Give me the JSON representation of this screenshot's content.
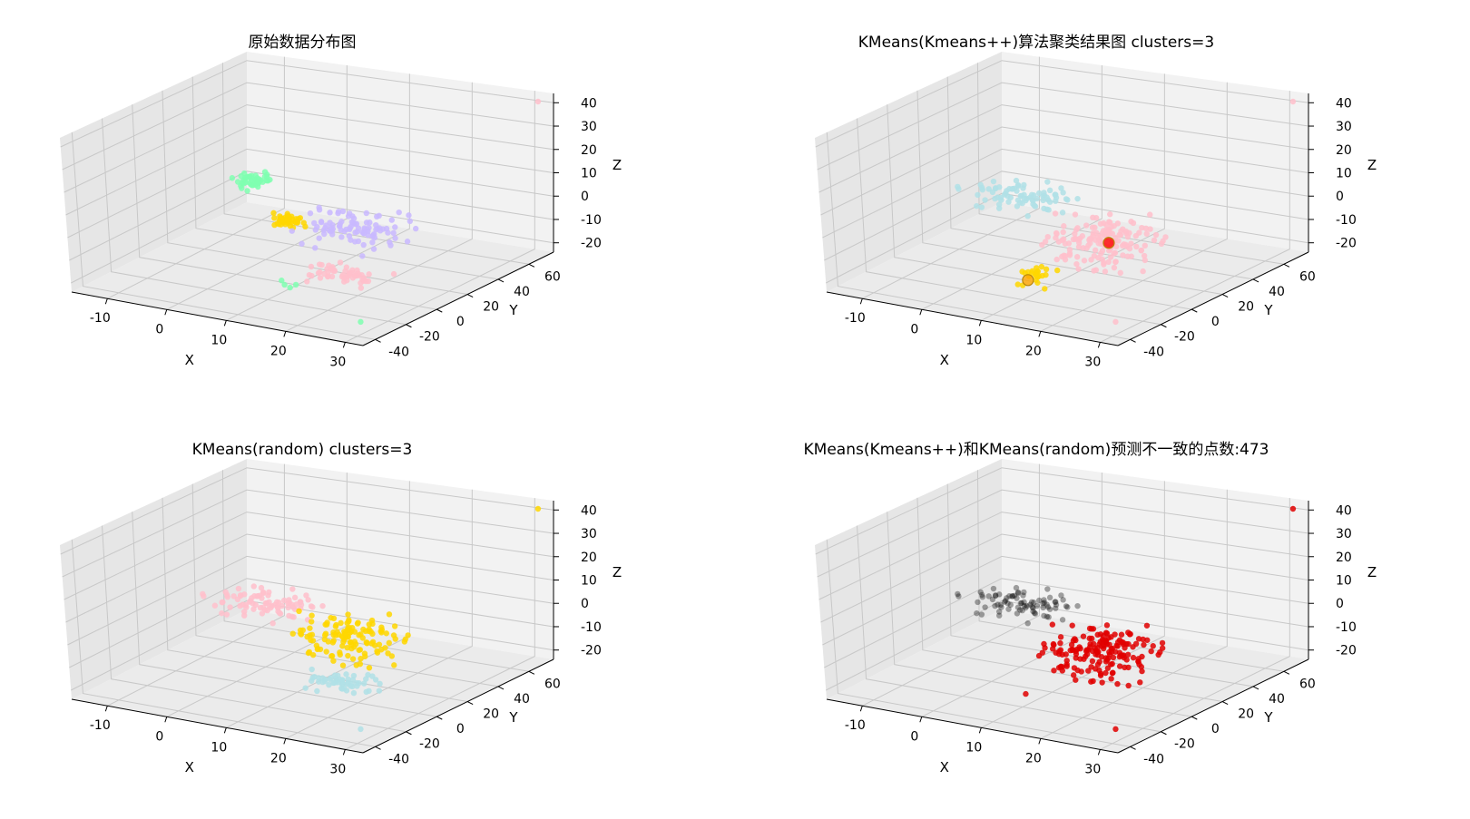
{
  "figure": {
    "background": "#ffffff",
    "pane_colors": {
      "back": "#f2f2f2",
      "side": "#e6e6e6",
      "floor": "#ebebeb"
    },
    "grid": true
  },
  "chart_data": [
    {
      "type": "scatter3d",
      "title": "原始数据分布图",
      "xlabel": "X",
      "ylabel": "Y",
      "zlabel": "Z",
      "xlim": [
        -16,
        33
      ],
      "ylim": [
        -48,
        76
      ],
      "zlim": [
        -24,
        44
      ],
      "xticks": [
        "-10",
        "0",
        "10",
        "20",
        "30"
      ],
      "yticks": [
        "-40",
        "-20",
        "0",
        "20",
        "40",
        "60"
      ],
      "zticks": [
        "-20",
        "-10",
        "0",
        "10",
        "20",
        "30",
        "40"
      ],
      "clusters": [
        {
          "color": "#7fffb0",
          "count": 45,
          "center": [
            -12,
            62,
            -8
          ],
          "spread": [
            1.2,
            3.5,
            1.2
          ]
        },
        {
          "color": "#ffd700",
          "count": 40,
          "center": [
            -2,
            45,
            -16
          ],
          "spread": [
            1.5,
            3,
            1
          ]
        },
        {
          "color": "#c9b8ff",
          "count": 95,
          "center": [
            12,
            30,
            -8
          ],
          "spread": [
            4,
            8,
            3
          ]
        },
        {
          "color": "#ffc0cb",
          "count": 55,
          "center": [
            16,
            5,
            -18
          ],
          "spread": [
            3,
            4,
            1.5
          ]
        },
        {
          "color": "#7fffb0",
          "count": 4,
          "center": [
            10,
            -5,
            -22
          ],
          "spread": [
            1,
            1,
            1
          ]
        }
      ],
      "extra_points": [
        {
          "x": 32,
          "y": 70,
          "z": 42,
          "color": "#ffc0cb"
        },
        {
          "x": 28,
          "y": -30,
          "z": -22,
          "color": "#7fffb0"
        }
      ]
    },
    {
      "type": "scatter3d",
      "title": "KMeans(Kmeans++)算法聚类结果图 clusters=3",
      "xlabel": "X",
      "ylabel": "Y",
      "zlabel": "Z",
      "xlim": [
        -16,
        33
      ],
      "ylim": [
        -48,
        76
      ],
      "zlim": [
        -24,
        44
      ],
      "xticks": [
        "-10",
        "0",
        "10",
        "20",
        "30"
      ],
      "yticks": [
        "-40",
        "-20",
        "0",
        "20",
        "40",
        "60"
      ],
      "zticks": [
        "-20",
        "-10",
        "0",
        "10",
        "20",
        "30",
        "40"
      ],
      "clusters": [
        {
          "color": "#b0e0e6",
          "count": 80,
          "center": [
            -8,
            55,
            -11
          ],
          "spread": [
            4,
            6,
            2
          ]
        },
        {
          "color": "#ffc0cb",
          "count": 150,
          "center": [
            14,
            20,
            -10
          ],
          "spread": [
            4,
            12,
            4
          ]
        },
        {
          "color": "#ffd700",
          "count": 25,
          "center": [
            8,
            -2,
            -20
          ],
          "spread": [
            1.5,
            3,
            2
          ]
        }
      ],
      "centroids": [
        {
          "x": 14,
          "y": 22,
          "z": -11,
          "color": "#ff0000"
        },
        {
          "x": 7,
          "y": -4,
          "z": -22,
          "color": "#ffa500"
        }
      ],
      "extra_points": [
        {
          "x": 32,
          "y": 70,
          "z": 42,
          "color": "#ffc0cb"
        },
        {
          "x": 28,
          "y": -30,
          "z": -22,
          "color": "#ffc0cb"
        }
      ]
    },
    {
      "type": "scatter3d",
      "title": "KMeans(random) clusters=3",
      "xlabel": "X",
      "ylabel": "Y",
      "zlabel": "Z",
      "xlim": [
        -16,
        33
      ],
      "ylim": [
        -48,
        76
      ],
      "zlim": [
        -24,
        44
      ],
      "xticks": [
        "-10",
        "0",
        "10",
        "20",
        "30"
      ],
      "yticks": [
        "-40",
        "-20",
        "0",
        "20",
        "40",
        "60"
      ],
      "zticks": [
        "-20",
        "-10",
        "0",
        "10",
        "20",
        "30",
        "40"
      ],
      "clusters": [
        {
          "color": "#ffc0cb",
          "count": 85,
          "center": [
            -8,
            55,
            -11
          ],
          "spread": [
            4,
            6,
            2
          ]
        },
        {
          "color": "#ffd700",
          "count": 130,
          "center": [
            12,
            28,
            -9
          ],
          "spread": [
            4,
            9,
            4
          ]
        },
        {
          "color": "#b0e0e6",
          "count": 55,
          "center": [
            16,
            4,
            -18
          ],
          "spread": [
            3,
            4,
            1.5
          ]
        }
      ],
      "extra_points": [
        {
          "x": 32,
          "y": 70,
          "z": 42,
          "color": "#ffd700"
        },
        {
          "x": 28,
          "y": -30,
          "z": -22,
          "color": "#b0e0e6"
        }
      ]
    },
    {
      "type": "scatter3d",
      "title": "KMeans(Kmeans++)和KMeans(random)预测不一致的点数:473",
      "xlabel": "X",
      "ylabel": "Y",
      "zlabel": "Z",
      "xlim": [
        -16,
        33
      ],
      "ylim": [
        -48,
        76
      ],
      "zlim": [
        -24,
        44
      ],
      "xticks": [
        "-10",
        "0",
        "10",
        "20",
        "30"
      ],
      "yticks": [
        "-40",
        "-20",
        "0",
        "20",
        "40",
        "60"
      ],
      "zticks": [
        "-20",
        "-10",
        "0",
        "10",
        "20",
        "30",
        "40"
      ],
      "clusters": [
        {
          "color": "#000000",
          "count": 80,
          "center": [
            -8,
            55,
            -11
          ],
          "spread": [
            4,
            6,
            2
          ]
        },
        {
          "color": "#e00000",
          "count": 170,
          "center": [
            14,
            18,
            -11
          ],
          "spread": [
            4,
            12,
            4
          ]
        }
      ],
      "extra_points": [
        {
          "x": 32,
          "y": 70,
          "z": 42,
          "color": "#e00000"
        },
        {
          "x": 28,
          "y": -30,
          "z": -22,
          "color": "#e00000"
        }
      ]
    }
  ]
}
